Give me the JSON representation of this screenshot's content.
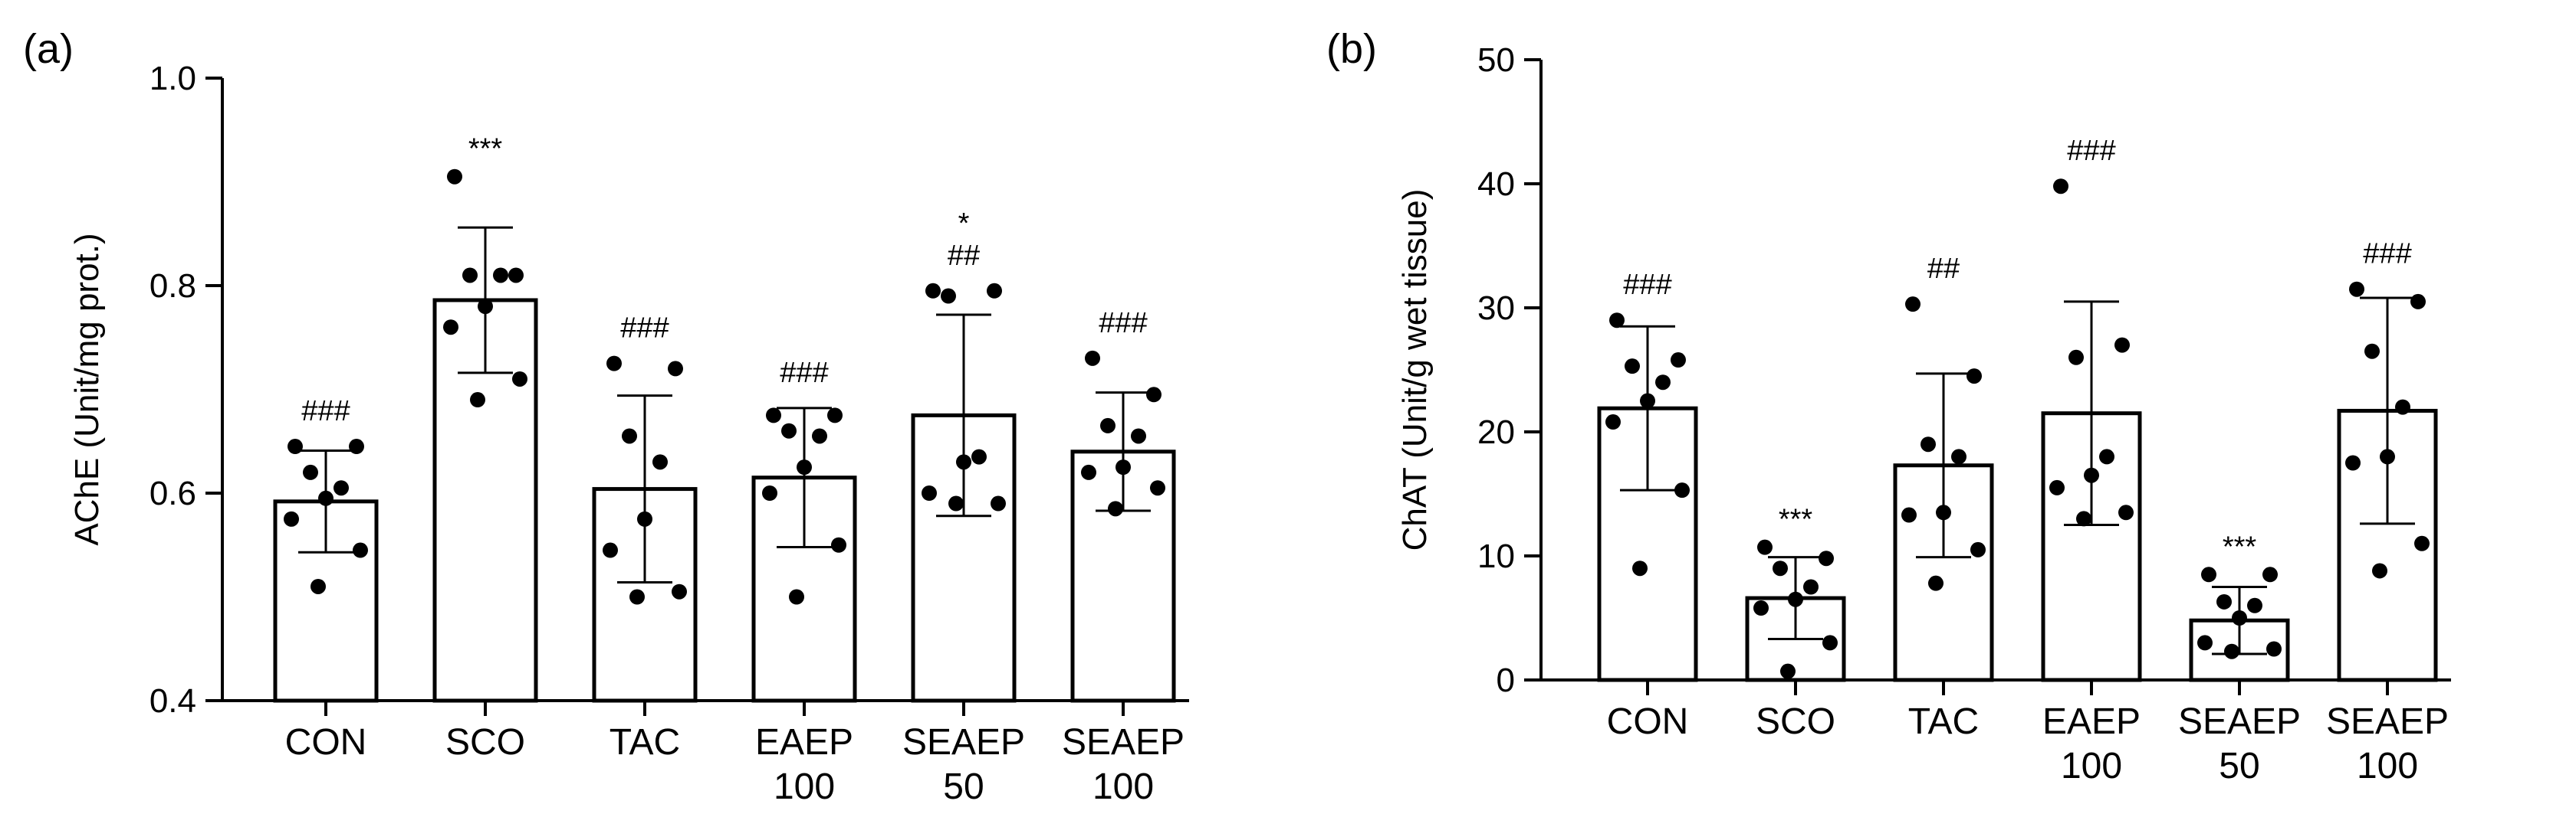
{
  "chart_data": [
    {
      "panel_label": "(a)",
      "type": "bar",
      "title": "",
      "xlabel": "",
      "ylabel": "AChE (Unit/mg prot.)",
      "ylim": [
        0.4,
        1.0
      ],
      "yticks": [
        "0.4",
        "0.6",
        "0.8",
        "1.0"
      ],
      "categories": [
        [
          "CON"
        ],
        [
          "SCO"
        ],
        [
          "TAC"
        ],
        [
          "EAEP",
          "100"
        ],
        [
          "SEAEP",
          "50"
        ],
        [
          "SEAEP",
          "100"
        ]
      ],
      "values": [
        0.592,
        0.786,
        0.604,
        0.615,
        0.675,
        0.64
      ],
      "sd": [
        0.049,
        0.07,
        0.09,
        0.067,
        0.097,
        0.057
      ],
      "points": [
        [
          0.645,
          0.645,
          0.62,
          0.605,
          0.595,
          0.575,
          0.545,
          0.51
        ],
        [
          0.905,
          0.81,
          0.81,
          0.81,
          0.78,
          0.76,
          0.71,
          0.69
        ],
        [
          0.725,
          0.72,
          0.655,
          0.63,
          0.575,
          0.545,
          0.505,
          0.5
        ],
        [
          0.675,
          0.675,
          0.66,
          0.655,
          0.625,
          0.6,
          0.55,
          0.5
        ],
        [
          0.795,
          0.795,
          0.79,
          0.635,
          0.63,
          0.6,
          0.59,
          0.59
        ],
        [
          0.73,
          0.695,
          0.665,
          0.655,
          0.625,
          0.62,
          0.605,
          0.585
        ]
      ],
      "annotations": [
        [
          "###"
        ],
        [
          "***"
        ],
        [
          "###"
        ],
        [
          "###"
        ],
        [
          "*",
          "##"
        ],
        [
          "###"
        ]
      ]
    },
    {
      "panel_label": "(b)",
      "type": "bar",
      "title": "",
      "xlabel": "",
      "ylabel": "ChAT (Unit/g wet tissue)",
      "ylim": [
        0,
        50
      ],
      "yticks": [
        "0",
        "10",
        "20",
        "30",
        "40",
        "50"
      ],
      "categories": [
        [
          "CON"
        ],
        [
          "SCO"
        ],
        [
          "TAC"
        ],
        [
          "EAEP",
          "100"
        ],
        [
          "SEAEP",
          "50"
        ],
        [
          "SEAEP",
          "100"
        ]
      ],
      "values": [
        21.9,
        6.6,
        17.3,
        21.5,
        4.8,
        21.7
      ],
      "sd": [
        6.6,
        3.3,
        7.4,
        9.0,
        2.7,
        9.1
      ],
      "points": [
        [
          29.0,
          25.8,
          25.3,
          24.0,
          22.5,
          20.8,
          15.3,
          9.0
        ],
        [
          10.7,
          9.8,
          9.0,
          7.5,
          6.5,
          5.8,
          3.0,
          0.7
        ],
        [
          30.3,
          24.5,
          19.0,
          18.0,
          13.5,
          13.3,
          10.5,
          7.8
        ],
        [
          39.8,
          27.0,
          26.0,
          18.0,
          16.5,
          15.5,
          13.5,
          13.0
        ],
        [
          8.5,
          8.5,
          6.3,
          6.0,
          5.0,
          3.0,
          2.5,
          2.3
        ],
        [
          31.5,
          30.5,
          26.5,
          22.0,
          18.0,
          17.5,
          11.0,
          8.8
        ]
      ],
      "annotations": [
        [
          "###"
        ],
        [
          "***"
        ],
        [
          "##"
        ],
        [
          "###"
        ],
        [
          "***"
        ],
        [
          "###"
        ]
      ]
    }
  ]
}
